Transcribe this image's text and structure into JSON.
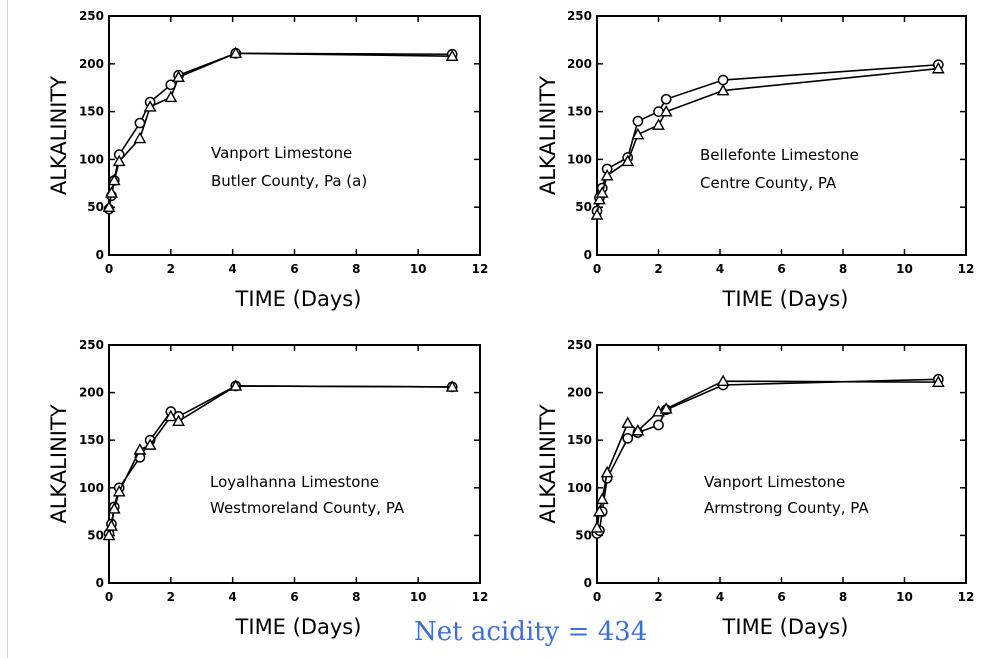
{
  "chart_data": [
    {
      "type": "line",
      "xlabel": "TIME (Days)",
      "ylabel": "ALKALINITY",
      "xlim": [
        0,
        12
      ],
      "ylim": [
        0,
        250
      ],
      "xticks": [
        "0",
        "2",
        "4",
        "6",
        "8",
        "10",
        "12"
      ],
      "yticks": [
        "0",
        "50",
        "100",
        "150",
        "200",
        "250"
      ],
      "annotation": [
        "Vanport Limestone",
        "Butler County, Pa (a)"
      ],
      "series": [
        {
          "marker": "circle",
          "x": [
            0,
            0.08,
            0.17,
            0.33,
            1.0,
            1.33,
            2.0,
            2.25,
            4.1,
            11.1
          ],
          "y": [
            48,
            62,
            78,
            105,
            138,
            160,
            178,
            188,
            211,
            210
          ]
        },
        {
          "marker": "triangle",
          "x": [
            0,
            0.08,
            0.17,
            0.33,
            1.0,
            1.33,
            2.0,
            2.25,
            4.1,
            11.1
          ],
          "y": [
            50,
            65,
            78,
            98,
            122,
            155,
            165,
            186,
            211,
            208
          ]
        }
      ]
    },
    {
      "type": "line",
      "xlabel": "TIME (Days)",
      "ylabel": "ALKALINITY",
      "xlim": [
        0,
        12
      ],
      "ylim": [
        0,
        250
      ],
      "xticks": [
        "0",
        "2",
        "4",
        "6",
        "8",
        "10",
        "12"
      ],
      "yticks": [
        "0",
        "50",
        "100",
        "150",
        "200",
        "250"
      ],
      "annotation": [
        "Bellefonte Limestone",
        "Centre County, PA"
      ],
      "series": [
        {
          "marker": "circle",
          "x": [
            0,
            0.08,
            0.17,
            0.33,
            1.0,
            1.33,
            2.0,
            2.25,
            4.1,
            11.1
          ],
          "y": [
            46,
            60,
            70,
            90,
            102,
            140,
            150,
            163,
            183,
            199
          ]
        },
        {
          "marker": "triangle",
          "x": [
            0,
            0.08,
            0.17,
            0.33,
            1.0,
            1.33,
            2.0,
            2.25,
            4.1,
            11.1
          ],
          "y": [
            42,
            58,
            65,
            83,
            98,
            126,
            136,
            150,
            172,
            195
          ]
        }
      ]
    },
    {
      "type": "line",
      "xlabel": "TIME (Days)",
      "ylabel": "ALKALINITY",
      "xlim": [
        0,
        12
      ],
      "ylim": [
        0,
        250
      ],
      "xticks": [
        "0",
        "2",
        "4",
        "6",
        "8",
        "10",
        "12"
      ],
      "yticks": [
        "0",
        "50",
        "100",
        "150",
        "200",
        "250"
      ],
      "annotation": [
        "Loyalhanna Limestone",
        "Westmoreland County, PA"
      ],
      "series": [
        {
          "marker": "circle",
          "x": [
            0,
            0.08,
            0.17,
            0.33,
            1.0,
            1.33,
            2.0,
            2.25,
            4.1,
            11.1
          ],
          "y": [
            52,
            62,
            80,
            100,
            132,
            150,
            180,
            175,
            207,
            206
          ]
        },
        {
          "marker": "triangle",
          "x": [
            0,
            0.08,
            0.17,
            0.33,
            1.0,
            1.33,
            2.0,
            2.25,
            4.1,
            11.1
          ],
          "y": [
            50,
            60,
            78,
            96,
            140,
            145,
            175,
            170,
            207,
            206
          ]
        }
      ]
    },
    {
      "type": "line",
      "xlabel": "TIME (Days)",
      "ylabel": "ALKALINITY",
      "xlim": [
        0,
        12
      ],
      "ylim": [
        0,
        250
      ],
      "xticks": [
        "0",
        "2",
        "4",
        "6",
        "8",
        "10",
        "12"
      ],
      "yticks": [
        "0",
        "50",
        "100",
        "150",
        "200",
        "250"
      ],
      "annotation": [
        "Vanport Limestone",
        "Armstrong County, PA"
      ],
      "series": [
        {
          "marker": "circle",
          "x": [
            0,
            0.08,
            0.17,
            0.33,
            1.0,
            1.33,
            2.0,
            2.25,
            4.1,
            11.1
          ],
          "y": [
            52,
            55,
            75,
            110,
            152,
            158,
            166,
            182,
            208,
            214
          ]
        },
        {
          "marker": "triangle",
          "x": [
            0,
            0.08,
            0.17,
            0.33,
            1.0,
            1.33,
            2.0,
            2.25,
            4.1,
            11.1
          ],
          "y": [
            58,
            75,
            88,
            116,
            168,
            160,
            180,
            183,
            212,
            211
          ]
        }
      ]
    }
  ],
  "footer": "Net acidity = 434"
}
